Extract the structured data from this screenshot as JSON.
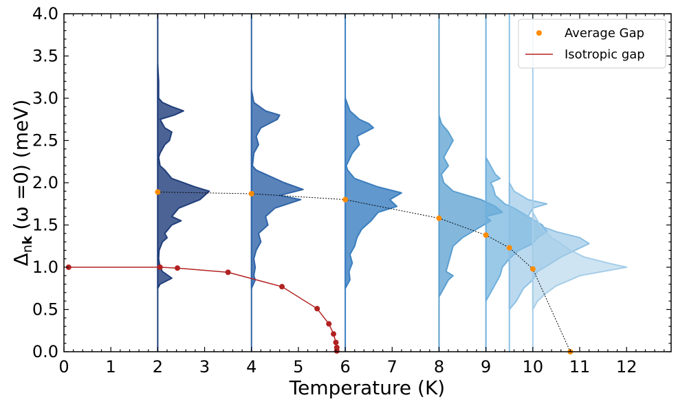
{
  "chart_data": {
    "type": "line",
    "xlabel": "Temperature (K)",
    "ylabel": "Δ_nk (ω =0) (meV)",
    "ylabel_parts": {
      "delta": "Δ",
      "sub_n": "n",
      "sub_k": "k",
      "rest": " (ω =0) (meV)"
    },
    "xlim": [
      0,
      12.95
    ],
    "ylim": [
      0,
      4.0
    ],
    "x_ticks": [
      "0",
      "1",
      "2",
      "3",
      "4",
      "5",
      "6",
      "7",
      "8",
      "9",
      "10",
      "11",
      "12"
    ],
    "y_ticks": [
      "0.0",
      "0.5",
      "1.0",
      "1.5",
      "2.0",
      "2.5",
      "3.0",
      "3.5",
      "4.0"
    ],
    "grid": false,
    "legend_position": "top-right",
    "series": [
      {
        "name": "Average Gap",
        "kind": "scatter-with-dotted-line",
        "color": "#ff8c00",
        "x": [
          2,
          4,
          6,
          8,
          9,
          9.5,
          10,
          10.8
        ],
        "y": [
          1.89,
          1.87,
          1.8,
          1.58,
          1.38,
          1.23,
          0.98,
          0.0
        ]
      },
      {
        "name": "Isotropic gap",
        "kind": "line-with-markers",
        "color": "#b22222",
        "x": [
          0.1,
          2.05,
          2.42,
          3.5,
          4.65,
          5.4,
          5.65,
          5.75,
          5.8,
          5.82,
          5.82
        ],
        "y": [
          1.0,
          1.0,
          0.99,
          0.94,
          0.77,
          0.51,
          0.33,
          0.21,
          0.11,
          0.05,
          0.01
        ]
      }
    ],
    "gap_distributions": [
      {
        "temperature": 2,
        "color": "#1f3d7a",
        "fill_opacity": 0.8,
        "profile": [
          [
            0.75,
            0
          ],
          [
            0.8,
            0.05
          ],
          [
            0.87,
            0.3
          ],
          [
            0.95,
            0.1
          ],
          [
            1.0,
            0.05
          ],
          [
            1.1,
            0.02
          ],
          [
            1.2,
            0.03
          ],
          [
            1.3,
            0.1
          ],
          [
            1.35,
            0.2
          ],
          [
            1.4,
            0.15
          ],
          [
            1.5,
            0.3
          ],
          [
            1.55,
            0.5
          ],
          [
            1.6,
            0.3
          ],
          [
            1.7,
            0.45
          ],
          [
            1.8,
            0.9
          ],
          [
            1.9,
            1.1
          ],
          [
            1.95,
            0.8
          ],
          [
            2.05,
            0.3
          ],
          [
            2.15,
            0.15
          ],
          [
            2.2,
            0.05
          ],
          [
            2.3,
            0.02
          ],
          [
            2.35,
            0.05
          ],
          [
            2.45,
            0.15
          ],
          [
            2.5,
            0.25
          ],
          [
            2.6,
            0.3
          ],
          [
            2.65,
            0.15
          ],
          [
            2.75,
            0.05
          ],
          [
            2.8,
            0.35
          ],
          [
            2.85,
            0.55
          ],
          [
            2.9,
            0.3
          ],
          [
            2.95,
            0.1
          ],
          [
            3.0,
            0.02
          ],
          [
            3.2,
            0.02
          ],
          [
            3.4,
            0
          ]
        ]
      },
      {
        "temperature": 4,
        "color": "#2f64a8",
        "fill_opacity": 0.8,
        "profile": [
          [
            0.75,
            0
          ],
          [
            0.85,
            0.08
          ],
          [
            0.9,
            0.05
          ],
          [
            1.0,
            0.08
          ],
          [
            1.1,
            0.05
          ],
          [
            1.2,
            0.1
          ],
          [
            1.3,
            0.2
          ],
          [
            1.4,
            0.15
          ],
          [
            1.5,
            0.35
          ],
          [
            1.6,
            0.3
          ],
          [
            1.7,
            0.5
          ],
          [
            1.8,
            1.05
          ],
          [
            1.85,
            0.6
          ],
          [
            1.92,
            1.1
          ],
          [
            2.0,
            0.7
          ],
          [
            2.1,
            0.3
          ],
          [
            2.15,
            0.1
          ],
          [
            2.2,
            0.02
          ],
          [
            2.35,
            0.05
          ],
          [
            2.45,
            0.15
          ],
          [
            2.55,
            0.1
          ],
          [
            2.65,
            0.2
          ],
          [
            2.75,
            0.55
          ],
          [
            2.8,
            0.6
          ],
          [
            2.85,
            0.3
          ],
          [
            2.95,
            0.05
          ],
          [
            3.1,
            0
          ]
        ]
      },
      {
        "temperature": 6,
        "color": "#3a7ec0",
        "fill_opacity": 0.8,
        "profile": [
          [
            0.75,
            0
          ],
          [
            0.85,
            0.1
          ],
          [
            0.95,
            0.08
          ],
          [
            1.05,
            0.15
          ],
          [
            1.15,
            0.1
          ],
          [
            1.25,
            0.2
          ],
          [
            1.35,
            0.25
          ],
          [
            1.45,
            0.35
          ],
          [
            1.55,
            0.55
          ],
          [
            1.65,
            0.7
          ],
          [
            1.72,
            1.1
          ],
          [
            1.8,
            0.95
          ],
          [
            1.88,
            1.2
          ],
          [
            1.95,
            0.7
          ],
          [
            2.05,
            0.2
          ],
          [
            2.15,
            0.05
          ],
          [
            2.2,
            0.02
          ],
          [
            2.35,
            0.15
          ],
          [
            2.45,
            0.3
          ],
          [
            2.55,
            0.25
          ],
          [
            2.65,
            0.6
          ],
          [
            2.7,
            0.5
          ],
          [
            2.75,
            0.3
          ],
          [
            2.85,
            0.1
          ],
          [
            3.0,
            0
          ]
        ]
      },
      {
        "temperature": 8,
        "color": "#5a9fd0",
        "fill_opacity": 0.75,
        "profile": [
          [
            0.65,
            0
          ],
          [
            0.75,
            0.1
          ],
          [
            0.85,
            0.2
          ],
          [
            0.9,
            0.3
          ],
          [
            0.95,
            0.15
          ],
          [
            1.05,
            0.2
          ],
          [
            1.15,
            0.25
          ],
          [
            1.25,
            0.3
          ],
          [
            1.35,
            0.5
          ],
          [
            1.45,
            0.8
          ],
          [
            1.55,
            1.1
          ],
          [
            1.6,
            1.0
          ],
          [
            1.65,
            1.35
          ],
          [
            1.72,
            1.2
          ],
          [
            1.8,
            0.9
          ],
          [
            1.9,
            0.3
          ],
          [
            2.0,
            0.1
          ],
          [
            2.1,
            0.05
          ],
          [
            2.2,
            0.2
          ],
          [
            2.3,
            0.1
          ],
          [
            2.4,
            0.2
          ],
          [
            2.5,
            0.3
          ],
          [
            2.6,
            0.2
          ],
          [
            2.7,
            0.05
          ],
          [
            2.8,
            0
          ]
        ]
      },
      {
        "temperature": 9,
        "color": "#6fb0dd",
        "fill_opacity": 0.7,
        "profile": [
          [
            0.6,
            0
          ],
          [
            0.7,
            0.1
          ],
          [
            0.8,
            0.2
          ],
          [
            0.9,
            0.3
          ],
          [
            1.0,
            0.35
          ],
          [
            1.1,
            0.5
          ],
          [
            1.2,
            0.7
          ],
          [
            1.28,
            1.0
          ],
          [
            1.35,
            1.1
          ],
          [
            1.42,
            1.3
          ],
          [
            1.5,
            1.2
          ],
          [
            1.6,
            0.9
          ],
          [
            1.7,
            0.6
          ],
          [
            1.75,
            0.4
          ],
          [
            1.85,
            0.2
          ],
          [
            1.95,
            0.15
          ],
          [
            2.0,
            0.1
          ],
          [
            2.05,
            0.3
          ],
          [
            2.1,
            0.2
          ],
          [
            2.2,
            0.1
          ],
          [
            2.3,
            0
          ]
        ]
      },
      {
        "temperature": 9.5,
        "color": "#8cc0e4",
        "fill_opacity": 0.6,
        "profile": [
          [
            0.5,
            0
          ],
          [
            0.6,
            0.15
          ],
          [
            0.75,
            0.3
          ],
          [
            0.85,
            0.5
          ],
          [
            0.95,
            0.6
          ],
          [
            1.05,
            0.9
          ],
          [
            1.12,
            1.1
          ],
          [
            1.2,
            1.4
          ],
          [
            1.28,
            1.7
          ],
          [
            1.35,
            1.5
          ],
          [
            1.42,
            1.0
          ],
          [
            1.5,
            0.6
          ],
          [
            1.6,
            0.4
          ],
          [
            1.7,
            0.5
          ],
          [
            1.75,
            0.8
          ],
          [
            1.8,
            0.4
          ],
          [
            1.9,
            0.1
          ],
          [
            2.0,
            0
          ]
        ]
      },
      {
        "temperature": 10,
        "color": "#a6cde8",
        "fill_opacity": 0.55,
        "profile": [
          [
            0.5,
            0
          ],
          [
            0.6,
            0.1
          ],
          [
            0.7,
            0.3
          ],
          [
            0.78,
            0.5
          ],
          [
            0.85,
            0.8
          ],
          [
            0.9,
            1.0
          ],
          [
            0.95,
            1.5
          ],
          [
            1.0,
            2.0
          ],
          [
            1.05,
            1.6
          ],
          [
            1.12,
            1.1
          ],
          [
            1.2,
            0.8
          ],
          [
            1.28,
            0.6
          ],
          [
            1.35,
            0.4
          ],
          [
            1.45,
            0.2
          ],
          [
            1.55,
            0.1
          ],
          [
            1.65,
            0
          ]
        ]
      }
    ]
  }
}
